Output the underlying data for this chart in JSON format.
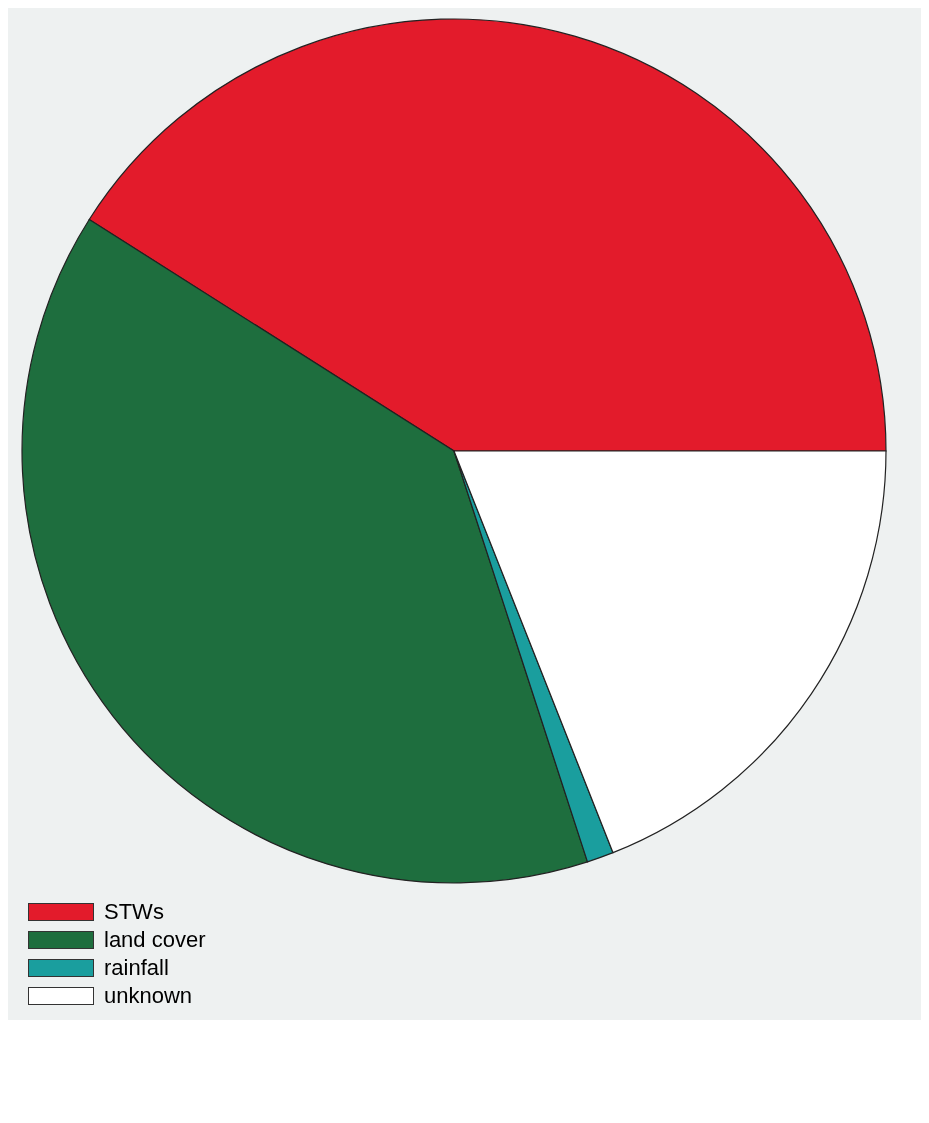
{
  "chart_data": {
    "type": "pie",
    "categories": [
      "STWs",
      "land cover",
      "rainfall",
      "unknown"
    ],
    "values": [
      41,
      39,
      1,
      19
    ],
    "colors": [
      "#e31b2b",
      "#1e6e3e",
      "#1a9e9e",
      "#ffffff"
    ],
    "legend": "bottom left"
  }
}
